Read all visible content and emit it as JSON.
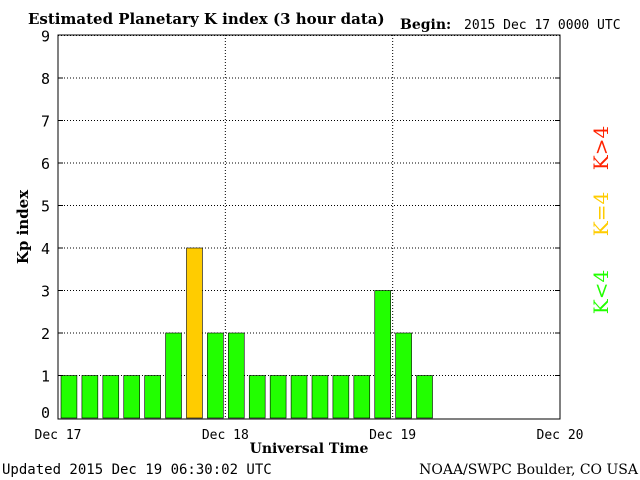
{
  "chart_data": {
    "type": "bar",
    "title": "Estimated Planetary K index (3 hour data)",
    "begin_label": "Begin:",
    "begin_value": "2015 Dec 17 0000 UTC",
    "ylabel": "Kp index",
    "xlabel": "Universal Time",
    "ylim": [
      0,
      9
    ],
    "yticks": [
      "0",
      "1",
      "2",
      "3",
      "4",
      "5",
      "6",
      "7",
      "8",
      "9"
    ],
    "xlim_hours": [
      0,
      72
    ],
    "xtick_labels": [
      {
        "hour": 0,
        "label": "Dec 17"
      },
      {
        "hour": 24,
        "label": "Dec 18"
      },
      {
        "hour": 48,
        "label": "Dec 19"
      },
      {
        "hour": 72,
        "label": "Dec 20"
      }
    ],
    "grid": true,
    "interval_hours": 3,
    "values": [
      1,
      1,
      1,
      1,
      1,
      2,
      4,
      2,
      2,
      1,
      1,
      1,
      1,
      1,
      1,
      3,
      2,
      1
    ],
    "colors": {
      "below": "#22ff00",
      "equal": "#ffcc00",
      "above": "#ff2200"
    },
    "legend": [
      {
        "label": "K<4",
        "color": "#22ff00"
      },
      {
        "label": "K=4",
        "color": "#ffcc00"
      },
      {
        "label": "K>4",
        "color": "#ff2200"
      }
    ]
  },
  "footer": {
    "updated": "Updated 2015 Dec 19 06:30:02 UTC",
    "source": "NOAA/SWPC Boulder, CO USA"
  }
}
